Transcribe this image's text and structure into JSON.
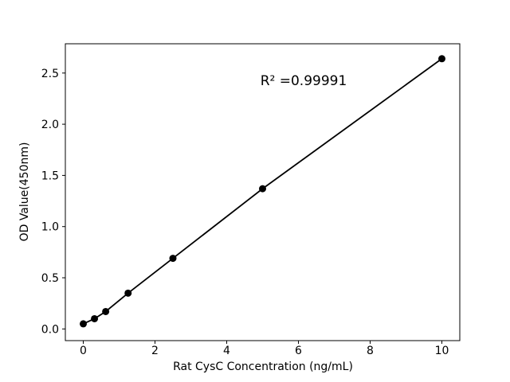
{
  "chart_data": {
    "type": "scatter",
    "title": "",
    "xlabel": "Rat CysC Concentration (ng/mL)",
    "ylabel": "OD Value(450nm)",
    "annotation": "R² =0.99991",
    "x": [
      0,
      0.3125,
      0.625,
      1.25,
      2.5,
      5,
      10
    ],
    "y": [
      0.05,
      0.1,
      0.17,
      0.35,
      0.69,
      1.37,
      2.64
    ],
    "line_through_points": true,
    "xlim": [
      -0.5,
      10.5
    ],
    "ylim": [
      -0.114,
      2.786
    ],
    "xticks": [
      0,
      2,
      4,
      6,
      8,
      10
    ],
    "xtick_labels": [
      "0",
      "2",
      "4",
      "6",
      "8",
      "10"
    ],
    "yticks": [
      0,
      0.5,
      1.0,
      1.5,
      2.0,
      2.5
    ],
    "ytick_labels": [
      "0.0",
      "0.5",
      "1.0",
      "1.5",
      "2.0",
      "2.5"
    ],
    "grid": false,
    "legend": "none",
    "colors": {
      "line": "#000000",
      "marker": "#000000",
      "axis": "#000000",
      "text": "#000000",
      "background": "#ffffff"
    }
  }
}
